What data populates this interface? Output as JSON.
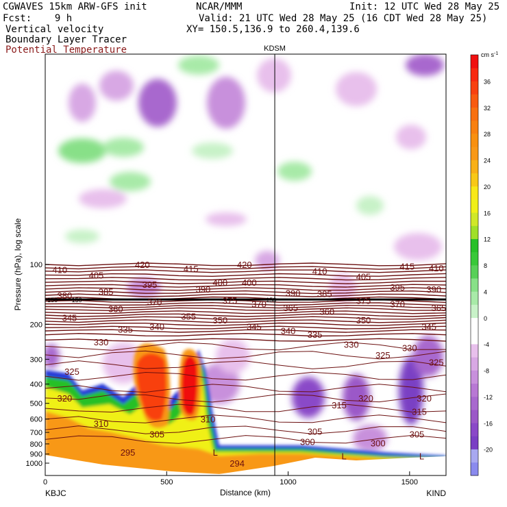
{
  "header": {
    "model": "CGWAVES 15km ARW-GFS init",
    "center": "NCAR/MMM",
    "init": "Init: 12 UTC Wed 28 May 25",
    "fcst": "Fcst:    9 h",
    "valid": "Valid: 21 UTC Wed 28 May 25 (16 CDT Wed 28 May 25)",
    "field1": "Vertical velocity",
    "xy": "XY= 150.5,136.9 to 260.4,139.6",
    "field2": "Boundary Layer Tracer",
    "field3": "Potential Temperature"
  },
  "colors": {
    "contour": "#6b0f0f",
    "field3_label": "#8b1a1a"
  },
  "chart_data": {
    "type": "heatmap",
    "title": "",
    "station_marker": {
      "label": "KDSM",
      "distance_km": 945
    },
    "xlabel": "Distance (km)",
    "ylabel": "Pressure (hPa), log scale",
    "xlim": [
      0,
      1650
    ],
    "x_ticks": [
      {
        "v": 0,
        "label": "0"
      },
      {
        "v": 500,
        "label": "500"
      },
      {
        "v": 1000,
        "label": "1000"
      },
      {
        "v": 1500,
        "label": "1500"
      }
    ],
    "x_end_labels": {
      "left": "KBJC",
      "right": "KIND"
    },
    "y_ticks": [
      {
        "v": 100,
        "label": "100"
      },
      {
        "v": 200,
        "label": "200"
      },
      {
        "v": 300,
        "label": "300"
      },
      {
        "v": 400,
        "label": "400"
      },
      {
        "v": 500,
        "label": "500"
      },
      {
        "v": 600,
        "label": "600"
      },
      {
        "v": 700,
        "label": "700"
      },
      {
        "v": 800,
        "label": "800"
      },
      {
        "v": 900,
        "label": "900"
      },
      {
        "v": 1000,
        "label": "1000"
      }
    ],
    "colorbar": {
      "unit": "cm s",
      "unit_exp": "-1",
      "levels": [
        {
          "label": "",
          "color": "#8a8aee"
        },
        {
          "label": "-20",
          "color": "#a8a8f0"
        },
        {
          "label": "",
          "color": "#7a3fc4"
        },
        {
          "label": "-16",
          "color": "#8a48c8"
        },
        {
          "label": "",
          "color": "#9b58c8"
        },
        {
          "label": "-12",
          "color": "#a868ce"
        },
        {
          "label": "",
          "color": "#b878d4"
        },
        {
          "label": "-8",
          "color": "#c890dc"
        },
        {
          "label": "",
          "color": "#d8a8e4"
        },
        {
          "label": "-4",
          "color": "#e8c0ec"
        },
        {
          "label": "",
          "color": "#ffffff"
        },
        {
          "label": "0",
          "color": "#ffffff"
        },
        {
          "label": "",
          "color": "#c8f2c8"
        },
        {
          "label": "4",
          "color": "#a8eaa8"
        },
        {
          "label": "",
          "color": "#88e088"
        },
        {
          "label": "8",
          "color": "#58d058"
        },
        {
          "label": "",
          "color": "#38c838"
        },
        {
          "label": "12",
          "color": "#28c028"
        },
        {
          "label": "",
          "color": "#a0e028"
        },
        {
          "label": "16",
          "color": "#d0e828"
        },
        {
          "label": "",
          "color": "#f0f018"
        },
        {
          "label": "20",
          "color": "#f8e818"
        },
        {
          "label": "",
          "color": "#f8c818"
        },
        {
          "label": "24",
          "color": "#f8b018"
        },
        {
          "label": "",
          "color": "#f89818"
        },
        {
          "label": "28",
          "color": "#f89010"
        },
        {
          "label": "",
          "color": "#f88010"
        },
        {
          "label": "32",
          "color": "#f87010"
        },
        {
          "label": "",
          "color": "#f85a10"
        },
        {
          "label": "36",
          "color": "#f84010"
        },
        {
          "label": "",
          "color": "#f82810"
        },
        {
          "label": "",
          "color": "#f01010"
        }
      ]
    },
    "theta_contours": [
      {
        "label": "294",
        "x": 790,
        "p": 1000
      },
      {
        "label": "295",
        "x": 340,
        "p": 880
      },
      {
        "label": "300",
        "x": 1080,
        "p": 780
      },
      {
        "label": "300",
        "x": 1370,
        "p": 790
      },
      {
        "label": "305",
        "x": 460,
        "p": 715
      },
      {
        "label": "305",
        "x": 1110,
        "p": 690
      },
      {
        "label": "305",
        "x": 1530,
        "p": 715
      },
      {
        "label": "310",
        "x": 230,
        "p": 630
      },
      {
        "label": "310",
        "x": 670,
        "p": 600
      },
      {
        "label": "315",
        "x": 1210,
        "p": 510
      },
      {
        "label": "315",
        "x": 1540,
        "p": 550
      },
      {
        "label": "320",
        "x": 80,
        "p": 470
      },
      {
        "label": "320",
        "x": 1320,
        "p": 470
      },
      {
        "label": "320",
        "x": 1560,
        "p": 470
      },
      {
        "label": "325",
        "x": 110,
        "p": 345
      },
      {
        "label": "325",
        "x": 1390,
        "p": 285
      },
      {
        "label": "325",
        "x": 1610,
        "p": 310
      },
      {
        "label": "330",
        "x": 230,
        "p": 245
      },
      {
        "label": "330",
        "x": 1260,
        "p": 252
      },
      {
        "label": "330",
        "x": 1500,
        "p": 262
      },
      {
        "label": "335",
        "x": 330,
        "p": 212
      },
      {
        "label": "335",
        "x": 1110,
        "p": 225
      },
      {
        "label": "340",
        "x": 460,
        "p": 205
      },
      {
        "label": "340",
        "x": 1000,
        "p": 215
      },
      {
        "label": "345",
        "x": 100,
        "p": 185
      },
      {
        "label": "345",
        "x": 860,
        "p": 205
      },
      {
        "label": "345",
        "x": 1580,
        "p": 205
      },
      {
        "label": "350",
        "x": 720,
        "p": 190
      },
      {
        "label": "350",
        "x": 1310,
        "p": 190
      },
      {
        "label": "355",
        "x": 590,
        "p": 182
      },
      {
        "label": "360",
        "x": 290,
        "p": 167
      },
      {
        "label": "360",
        "x": 1160,
        "p": 172
      },
      {
        "label": "365",
        "x": 1010,
        "p": 165
      },
      {
        "label": "365",
        "x": 1620,
        "p": 165
      },
      {
        "label": "370",
        "x": 450,
        "p": 154
      },
      {
        "label": "370",
        "x": 880,
        "p": 158
      },
      {
        "label": "370",
        "x": 1450,
        "p": 158
      },
      {
        "label": "375",
        "x": 760,
        "p": 152
      },
      {
        "label": "375",
        "x": 1310,
        "p": 152
      },
      {
        "label": "380",
        "x": 80,
        "p": 143
      },
      {
        "label": "385",
        "x": 250,
        "p": 137
      },
      {
        "label": "385",
        "x": 1150,
        "p": 140
      },
      {
        "label": "390",
        "x": 650,
        "p": 133
      },
      {
        "label": "390",
        "x": 1020,
        "p": 139
      },
      {
        "label": "390",
        "x": 1600,
        "p": 133
      },
      {
        "label": "395",
        "x": 430,
        "p": 126
      },
      {
        "label": "395",
        "x": 1450,
        "p": 130
      },
      {
        "label": "400",
        "x": 720,
        "p": 123
      },
      {
        "label": "400",
        "x": 840,
        "p": 123
      },
      {
        "label": "405",
        "x": 210,
        "p": 113
      },
      {
        "label": "405",
        "x": 1310,
        "p": 115
      },
      {
        "label": "410",
        "x": 60,
        "p": 106
      },
      {
        "label": "410",
        "x": 1130,
        "p": 108
      },
      {
        "label": "410",
        "x": 1610,
        "p": 104
      },
      {
        "label": "415",
        "x": 600,
        "p": 105
      },
      {
        "label": "415",
        "x": 1490,
        "p": 102
      },
      {
        "label": "420",
        "x": 400,
        "p": 100
      },
      {
        "label": "420",
        "x": 820,
        "p": 100
      },
      {
        "label": "L",
        "x": 700,
        "p": 880
      },
      {
        "label": "L",
        "x": 1230,
        "p": 920
      },
      {
        "label": "L",
        "x": 1550,
        "p": 920
      }
    ],
    "tropopause_labels": [
      {
        "label": "150",
        "x": 30,
        "p": 150
      },
      {
        "label": "150",
        "x": 130,
        "p": 150
      },
      {
        "label": "150",
        "x": 930,
        "p": 150
      }
    ]
  }
}
